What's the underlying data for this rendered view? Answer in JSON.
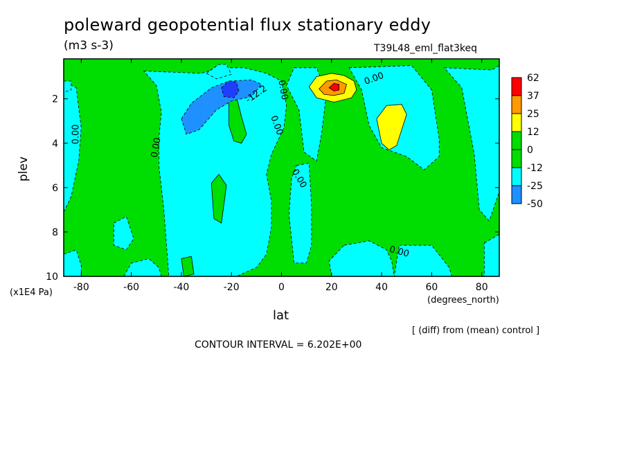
{
  "page": {
    "title": "poleward geopotential flux stationary eddy",
    "units": "(m3 s-3)",
    "run_id": "T39L48_eml_flat3keq",
    "diff_note": "[ (diff) from (mean) control ]",
    "contour_interval": "CONTOUR INTERVAL = 6.202E+00"
  },
  "chart_data": {
    "type": "heatmap",
    "title": "poleward geopotential flux stationary eddy",
    "xlabel": "lat",
    "x_units": "(degrees_north)",
    "ylabel": "plev",
    "y_units": "(x1E4 Pa)",
    "xlim": [
      -87,
      87
    ],
    "ylim": [
      10,
      0.2
    ],
    "y_inverted": true,
    "x_ticks": [
      -80,
      -60,
      -40,
      -20,
      0,
      20,
      40,
      60,
      80
    ],
    "y_ticks": [
      2,
      4,
      6,
      8,
      10
    ],
    "contour_interval": 6.202,
    "colorbar": {
      "levels": [
        "62",
        "37",
        "25",
        "12",
        "0",
        "-12",
        "-25",
        "-50"
      ],
      "colors": [
        "#ff0000",
        "#ff9a00",
        "#ffff00",
        "#00dd00",
        "#00dd00",
        "#00ffff",
        "#1e90ff",
        "#1f3fff"
      ]
    },
    "background_color": "#00dd00",
    "regions": [
      {
        "value": -6,
        "color": "#00ffff",
        "points": [
          [
            -87,
            7.1
          ],
          [
            -84,
            6.4
          ],
          [
            -81,
            4.8
          ],
          [
            -80,
            3.3
          ],
          [
            -82,
            1.5
          ],
          [
            -87,
            1.2
          ]
        ]
      },
      {
        "value": -6,
        "color": "#00ffff",
        "points": [
          [
            -55,
            0.75
          ],
          [
            -32,
            0.85
          ],
          [
            -25,
            0.6
          ],
          [
            -15,
            0.6
          ],
          [
            -6,
            0.85
          ],
          [
            0,
            1.2
          ],
          [
            2,
            2.3
          ],
          [
            1,
            3.3
          ],
          [
            -4,
            4.5
          ],
          [
            -6,
            5.4
          ],
          [
            -4,
            6.6
          ],
          [
            -4,
            7.8
          ],
          [
            -6,
            9
          ],
          [
            -10,
            9.6
          ],
          [
            -18,
            10
          ],
          [
            -45,
            10
          ],
          [
            -46,
            8.5
          ],
          [
            -47,
            7
          ],
          [
            -49,
            5
          ],
          [
            -49,
            3.8
          ],
          [
            -48,
            2.6
          ],
          [
            -50,
            1.4
          ]
        ]
      },
      {
        "value": -6,
        "color": "#00ffff",
        "points": [
          [
            -30,
            0.85
          ],
          [
            -25,
            0.45
          ],
          [
            -22,
            0.45
          ],
          [
            -20,
            0.9
          ],
          [
            -26,
            1.1
          ]
        ]
      },
      {
        "value": -6,
        "color": "#00ffff",
        "points": [
          [
            5,
            0.6
          ],
          [
            14,
            0.6
          ],
          [
            18,
            1.7
          ],
          [
            16,
            3.6
          ],
          [
            14,
            4.8
          ],
          [
            9,
            4.4
          ],
          [
            7,
            2.5
          ],
          [
            2,
            1.4
          ]
        ]
      },
      {
        "value": -6,
        "color": "#00ffff",
        "points": [
          [
            6,
            5
          ],
          [
            11,
            4.9
          ],
          [
            12,
            6.8
          ],
          [
            12,
            8.6
          ],
          [
            10,
            9.4
          ],
          [
            5,
            9.4
          ],
          [
            3,
            7.2
          ],
          [
            4,
            5.6
          ]
        ]
      },
      {
        "value": -6,
        "color": "#00ffff",
        "points": [
          [
            27,
            0.6
          ],
          [
            52,
            0.5
          ],
          [
            60,
            1.6
          ],
          [
            63,
            3.8
          ],
          [
            63,
            4.6
          ],
          [
            57,
            5.2
          ],
          [
            50,
            4.6
          ],
          [
            40,
            4.2
          ],
          [
            35,
            3.2
          ],
          [
            32,
            1.6
          ]
        ]
      },
      {
        "value": -6,
        "color": "#00ffff",
        "points": [
          [
            65,
            0.6
          ],
          [
            84,
            0.7
          ],
          [
            87,
            0.5
          ],
          [
            87,
            6.2
          ],
          [
            83,
            7.5
          ],
          [
            79,
            7
          ],
          [
            77,
            4.5
          ],
          [
            72,
            1.5
          ]
        ]
      },
      {
        "value": -6,
        "color": "#00ffff",
        "points": [
          [
            25,
            8.6
          ],
          [
            35,
            8.4
          ],
          [
            42,
            8.8
          ],
          [
            44,
            9.3
          ],
          [
            45,
            10
          ],
          [
            20,
            10
          ],
          [
            19,
            9.3
          ]
        ]
      },
      {
        "value": -6,
        "color": "#00ffff",
        "points": [
          [
            47,
            8.6
          ],
          [
            60,
            8.6
          ],
          [
            67,
            9.6
          ],
          [
            68,
            10
          ],
          [
            45,
            10
          ]
        ]
      },
      {
        "value": -6,
        "color": "#00ffff",
        "points": [
          [
            -87,
            9
          ],
          [
            -82,
            8.8
          ],
          [
            -80,
            9.5
          ],
          [
            -80,
            10
          ],
          [
            -87,
            10
          ]
        ]
      },
      {
        "value": -6,
        "color": "#00ffff",
        "points": [
          [
            -67,
            7.6
          ],
          [
            -62,
            7.3
          ],
          [
            -59,
            8.3
          ],
          [
            -62,
            8.8
          ],
          [
            -67,
            8.6
          ]
        ]
      },
      {
        "value": -6,
        "color": "#00ffff",
        "points": [
          [
            -87,
            1.2
          ],
          [
            -84,
            1.2
          ],
          [
            -84,
            1.6
          ],
          [
            -87,
            1.7
          ]
        ]
      },
      {
        "value": -6,
        "color": "#00ffff",
        "points": [
          [
            -63,
            10
          ],
          [
            -60,
            9.4
          ],
          [
            -53,
            9.2
          ],
          [
            -49,
            9.6
          ],
          [
            -48,
            10
          ]
        ]
      },
      {
        "value": -6,
        "color": "#00ffff",
        "points": [
          [
            81,
            8.5
          ],
          [
            87,
            8.1
          ],
          [
            87,
            10
          ],
          [
            81,
            10
          ]
        ]
      },
      {
        "value": 3,
        "color": "#00dd00",
        "points": [
          [
            -21,
            1.8
          ],
          [
            -18,
            1.9
          ],
          [
            -16,
            2.8
          ],
          [
            -14,
            3.6
          ],
          [
            -16,
            4
          ],
          [
            -19,
            3.9
          ],
          [
            -21,
            3.2
          ]
        ]
      },
      {
        "value": 3,
        "color": "#00dd00",
        "points": [
          [
            -28,
            5.8
          ],
          [
            -25,
            5.4
          ],
          [
            -22,
            5.9
          ],
          [
            -24,
            7.6
          ],
          [
            -27,
            7.4
          ]
        ]
      },
      {
        "value": 3,
        "color": "#00dd00",
        "points": [
          [
            -40,
            9.2
          ],
          [
            -36,
            9.1
          ],
          [
            -35,
            9.9
          ],
          [
            -39,
            10
          ]
        ]
      },
      {
        "value": -18,
        "color": "#1e90ff",
        "points": [
          [
            -40,
            2.9
          ],
          [
            -36,
            2.2
          ],
          [
            -28,
            1.5
          ],
          [
            -21,
            1.2
          ],
          [
            -12,
            1.15
          ],
          [
            -8,
            1.35
          ],
          [
            -12,
            1.9
          ],
          [
            -20,
            2.1
          ],
          [
            -26,
            2.5
          ],
          [
            -33,
            3.4
          ],
          [
            -38,
            3.6
          ]
        ]
      },
      {
        "value": -31,
        "color": "#1f3fff",
        "points": [
          [
            -24,
            1.5
          ],
          [
            -21,
            1.2
          ],
          [
            -18,
            1.25
          ],
          [
            -17,
            1.65
          ],
          [
            -19,
            1.95
          ],
          [
            -23,
            1.9
          ]
        ]
      },
      {
        "value": 18,
        "color": "#ffff00",
        "points": [
          [
            11,
            1.45
          ],
          [
            14,
            1.0
          ],
          [
            20,
            0.85
          ],
          [
            25,
            0.95
          ],
          [
            29,
            1.2
          ],
          [
            30,
            1.6
          ],
          [
            28,
            1.95
          ],
          [
            21,
            2.15
          ],
          [
            14,
            1.95
          ]
        ]
      },
      {
        "value": 18,
        "color": "#ffff00",
        "points": [
          [
            38,
            2.9
          ],
          [
            42,
            2.3
          ],
          [
            48,
            2.25
          ],
          [
            50,
            2.7
          ],
          [
            48,
            3.4
          ],
          [
            46,
            4.1
          ],
          [
            43,
            4.3
          ],
          [
            40,
            4.0
          ]
        ]
      },
      {
        "value": 31,
        "color": "#ff9a00",
        "points": [
          [
            15,
            1.55
          ],
          [
            18,
            1.2
          ],
          [
            22,
            1.15
          ],
          [
            26,
            1.35
          ],
          [
            25,
            1.75
          ],
          [
            21,
            1.85
          ],
          [
            17,
            1.8
          ]
        ]
      },
      {
        "value": 49,
        "color": "#ff0000",
        "points": [
          [
            19,
            1.5
          ],
          [
            21,
            1.3
          ],
          [
            23,
            1.35
          ],
          [
            23,
            1.6
          ],
          [
            21,
            1.65
          ]
        ]
      }
    ],
    "contour_labels": [
      {
        "text": "0.00",
        "x": -82,
        "y": 3.6,
        "rotate": -90
      },
      {
        "text": "0.00",
        "x": -50,
        "y": 4.2,
        "rotate": -80
      },
      {
        "text": "-12.2",
        "x": -10,
        "y": 1.8,
        "rotate": -35
      },
      {
        "text": "0.00",
        "x": 0.5,
        "y": 1.6,
        "rotate": 80
      },
      {
        "text": "0.00",
        "x": -2,
        "y": 3.2,
        "rotate": 70
      },
      {
        "text": "0.00",
        "x": 7,
        "y": 5.6,
        "rotate": 60
      },
      {
        "text": "0.00",
        "x": 37,
        "y": 1.1,
        "rotate": -20
      },
      {
        "text": "0.00",
        "x": 47,
        "y": 8.9,
        "rotate": 15
      }
    ]
  }
}
